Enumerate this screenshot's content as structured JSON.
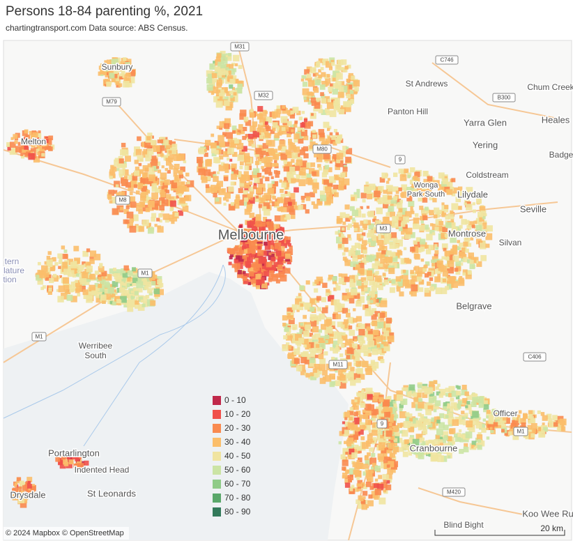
{
  "header": {
    "title": "Persons 18-84 parenting %, 2021",
    "subtitle": "chartingtransport.com  Data source: ABS Census."
  },
  "legend": [
    {
      "label": "0 - 10",
      "color": "#c0284a"
    },
    {
      "label": "10 - 20",
      "color": "#f0504a"
    },
    {
      "label": "20 - 30",
      "color": "#f98a4f"
    },
    {
      "label": "30 - 40",
      "color": "#fbbe6a"
    },
    {
      "label": "40 - 50",
      "color": "#f0e4a0"
    },
    {
      "label": "50 - 60",
      "color": "#cbe4a4"
    },
    {
      "label": "60 - 70",
      "color": "#8fcb87"
    },
    {
      "label": "70 - 80",
      "color": "#5aa86a"
    },
    {
      "label": "80 - 90",
      "color": "#337a5a"
    }
  ],
  "places": [
    "Sunbury",
    "Melton",
    "Melbourne",
    "Werribee",
    "South",
    "Portarlington",
    "Indented Head",
    "St Leonards",
    "Drysdale",
    "St Andrews",
    "Panton Hill",
    "Yarra Glen",
    "Yering",
    "Coldstream",
    "Wonga",
    "Park South",
    "Lilydale",
    "Seville",
    "Montrose",
    "Silvan",
    "Belgrave",
    "Officer",
    "Cranbourne",
    "Heales",
    "Chum Creek",
    "Badge",
    "Koo Wee Ru",
    "Blind Bight",
    "tern",
    "lature",
    "tion"
  ],
  "roads": [
    "M31",
    "C746",
    "M32",
    "B300",
    "M79",
    "M80",
    "9",
    "M8",
    "M3",
    "M1",
    "M1",
    "C406",
    "M11",
    "9",
    "M1",
    "M420"
  ],
  "attribution": "© 2024 Mapbox © OpenStreetMap",
  "scale": "20 km"
}
